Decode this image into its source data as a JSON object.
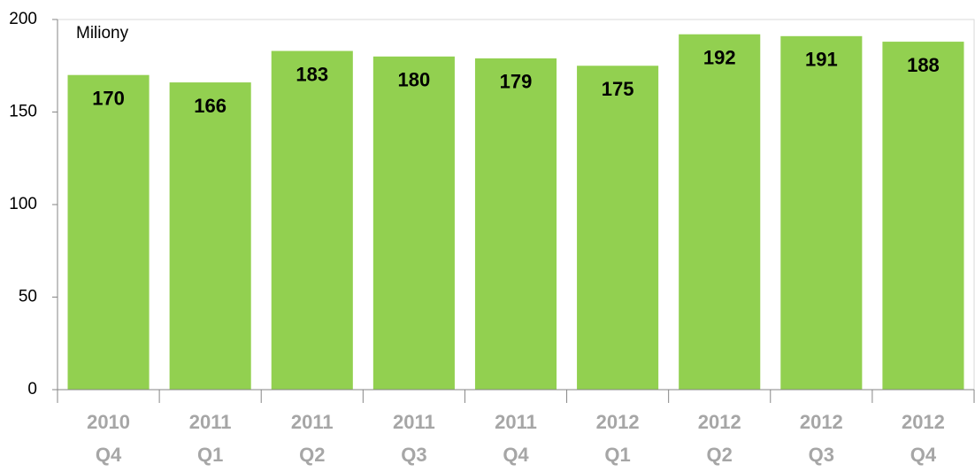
{
  "chart_data": {
    "type": "bar",
    "annotation": "Miliony",
    "categories": [
      [
        "2010",
        "Q4"
      ],
      [
        "2011",
        "Q1"
      ],
      [
        "2011",
        "Q2"
      ],
      [
        "2011",
        "Q3"
      ],
      [
        "2011",
        "Q4"
      ],
      [
        "2012",
        "Q1"
      ],
      [
        "2012",
        "Q2"
      ],
      [
        "2012",
        "Q3"
      ],
      [
        "2012",
        "Q4"
      ]
    ],
    "values": [
      170,
      166,
      183,
      180,
      179,
      175,
      192,
      191,
      188
    ],
    "color": "#92d050",
    "ylim": [
      0,
      200
    ],
    "yticks": [
      0,
      50,
      100,
      150,
      200
    ],
    "grid": false
  }
}
